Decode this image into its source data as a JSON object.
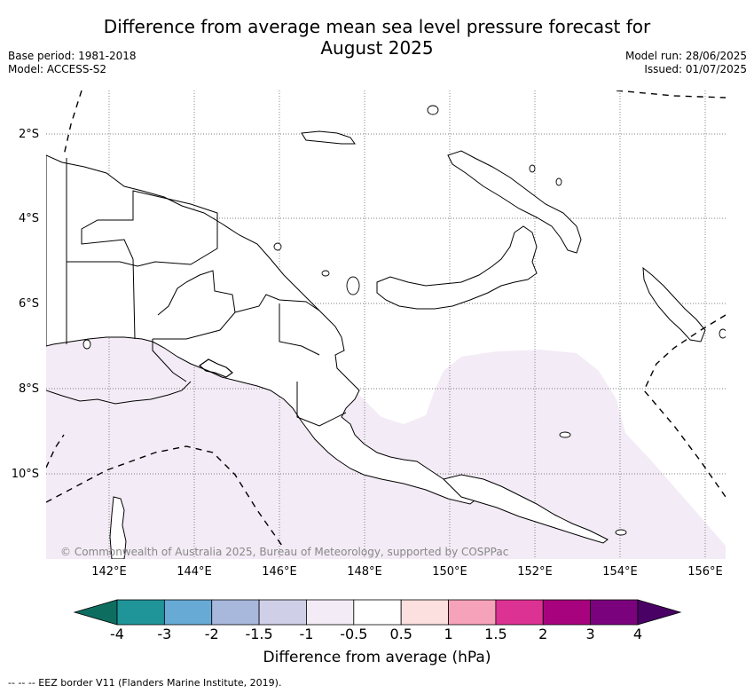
{
  "title_line1": "Difference from average mean sea level pressure forecast for",
  "title_line2": "August 2025",
  "base_period": "Base period: 1981-2018",
  "model": "Model: ACCESS-S2",
  "model_run": "Model run: 28/06/2025",
  "issued": "Issued: 01/07/2025",
  "copyright": "© Commonwealth of Australia 2025, Bureau of Meteorology, supported by COSPPac",
  "lat_labels": [
    "2°S",
    "4°S",
    "6°S",
    "8°S",
    "10°S"
  ],
  "lon_labels": [
    "142°E",
    "144°E",
    "146°E",
    "148°E",
    "150°E",
    "152°E",
    "154°E",
    "156°E"
  ],
  "colorbar": {
    "title": "Difference from average (hPa)",
    "tick_labels": [
      "-4",
      "-3",
      "-2",
      "-1.5",
      "-1",
      "-0.5",
      "0.5",
      "1",
      "1.5",
      "2",
      "3",
      "4"
    ],
    "colors": [
      "#0d6e60",
      "#1f9499",
      "#67aad6",
      "#a8b8dc",
      "#cfd0e8",
      "#f3ebf5",
      "#ffffff",
      "#fcdfdf",
      "#f6a2bb",
      "#dc3294",
      "#a8037f",
      "#7a027d",
      "#490165"
    ]
  },
  "footer": "--  --  -- EEZ border V11 (Flanders Marine Institute, 2019).",
  "colors": {
    "anomaly_fill": "#f3ebf5",
    "coastline": "#000000",
    "grid": "#555555"
  }
}
